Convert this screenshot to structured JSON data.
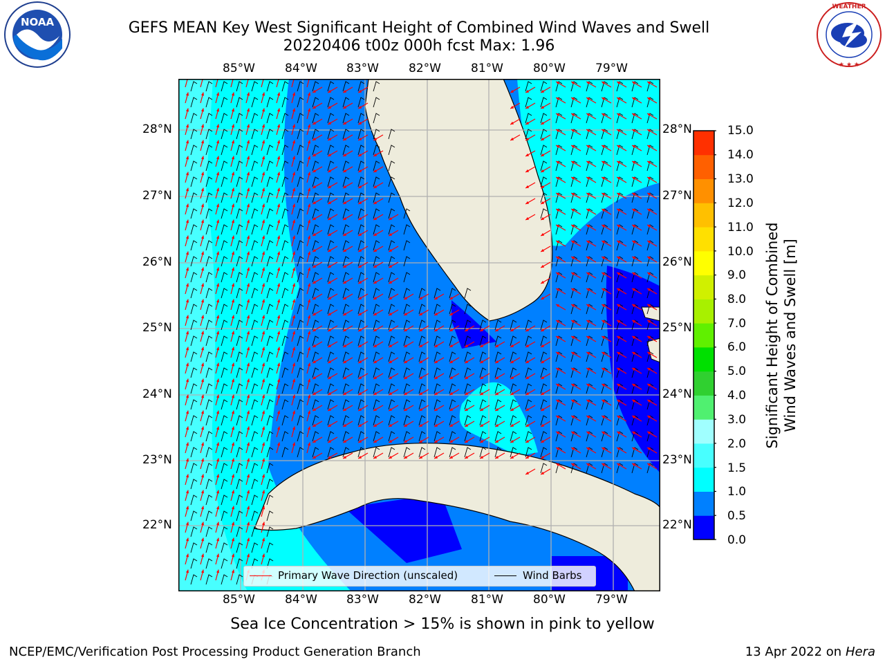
{
  "title": {
    "line1": "GEFS MEAN Key West Significant Height of Combined Wind Waves and Swell",
    "line2": "20220406 t00z 000h fcst   Max: 1.96"
  },
  "logos": {
    "left": {
      "text": "NOAA",
      "ring_text": "NATIONAL OCEANIC AND ATMOSPHERIC ADMINISTRATION · U.S. DEPARTMENT OF COMMERCE"
    },
    "right": {
      "ring_text": "NATIONAL WEATHER SERVICE"
    }
  },
  "map": {
    "lon_labels": [
      "85°W",
      "84°W",
      "83°W",
      "82°W",
      "81°W",
      "80°W",
      "79°W"
    ],
    "lat_labels": [
      "28°N",
      "27°N",
      "26°N",
      "25°N",
      "24°N",
      "23°N",
      "22°N"
    ],
    "land_color": "#eeecdc",
    "grid_color": "#b0b0b0"
  },
  "legend": {
    "primary_wave": "Primary Wave Direction (unscaled)",
    "wind_barbs": "Wind Barbs",
    "wave_color": "#ff0000",
    "barb_color": "#000000"
  },
  "colorbar": {
    "title_line1": "Significant Height of Combined",
    "title_line2": "Wind Waves and Swell [m]",
    "ticks": [
      "0.0",
      "0.5",
      "1.0",
      "1.5",
      "2.0",
      "3.0",
      "4.0",
      "5.0",
      "6.0",
      "7.0",
      "8.0",
      "9.0",
      "10.0",
      "11.0",
      "12.0",
      "13.0",
      "14.0",
      "15.0"
    ],
    "colors": [
      "#0000ff",
      "#0080ff",
      "#00ffff",
      "#48ffff",
      "#a0ffff",
      "#50f070",
      "#30d030",
      "#00e000",
      "#60f000",
      "#a8f000",
      "#d0f000",
      "#ffff00",
      "#ffe000",
      "#ffc000",
      "#ff9000",
      "#ff6000",
      "#ff3000"
    ]
  },
  "sea_ice_note": "Sea Ice Concentration > 15% is shown in pink to yellow",
  "footer": {
    "left": "NCEP/EMC/Verification Post Processing Product Generation Branch",
    "right_prefix": "13 Apr 2022 on ",
    "right_host": "Hera"
  }
}
